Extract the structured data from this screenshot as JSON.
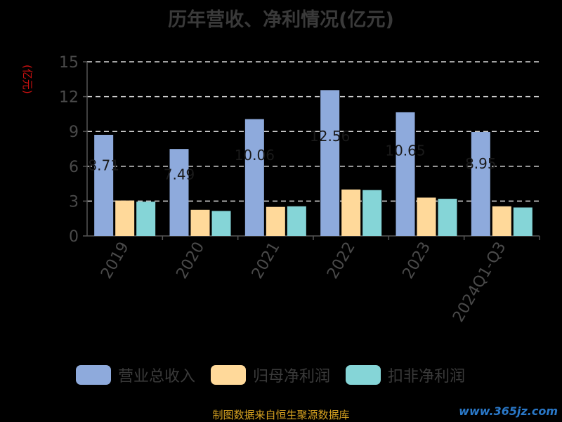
{
  "chart_data": {
    "type": "bar",
    "title": "历年营收、净利情况(亿元)",
    "ylabel": "(亿元)",
    "ylim": [
      0,
      15
    ],
    "yticks": [
      0,
      3,
      6,
      9,
      12,
      15
    ],
    "categories": [
      "2019",
      "2020",
      "2021",
      "2022",
      "2023",
      "2024Q1-Q3"
    ],
    "series": [
      {
        "name": "营业总收入",
        "color": "#8eaadc",
        "values": [
          8.71,
          7.49,
          10.06,
          12.56,
          10.65,
          8.95
        ]
      },
      {
        "name": "归母净利润",
        "color": "#ffd99a",
        "values": [
          3.05,
          2.25,
          2.5,
          4.0,
          3.3,
          2.55
        ]
      },
      {
        "name": "扣非净利润",
        "color": "#85d5d7",
        "values": [
          2.95,
          2.15,
          2.55,
          3.95,
          3.2,
          2.45
        ]
      }
    ],
    "data_labels": [
      "8.71",
      "7.49",
      "10.06",
      "12.56",
      "10.65",
      "8.95"
    ],
    "grid": true,
    "legend_position": "bottom"
  },
  "footer": "制图数据来自恒生聚源数据库",
  "watermark": "www.365jz.com"
}
